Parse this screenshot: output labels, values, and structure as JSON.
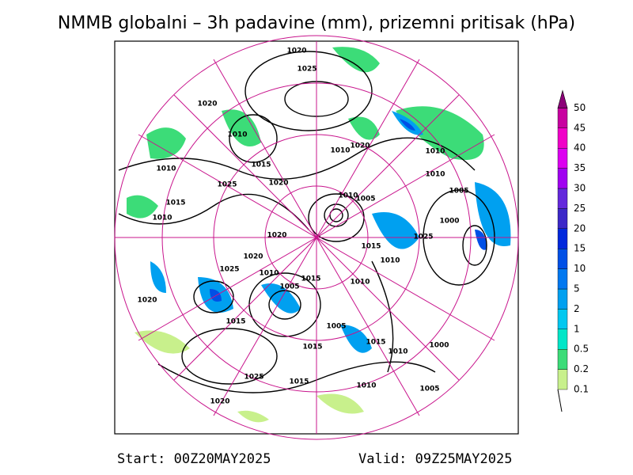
{
  "header": {
    "title": "NMMB globalni – 3h padavine (mm), prizemni pritisak (hPa)"
  },
  "footer": {
    "start": "Start: 00Z20MAY2025",
    "valid": "Valid: 09Z25MAY2025"
  },
  "colorbar": {
    "labels": [
      "0.1",
      "0.2",
      "0.5",
      "1",
      "2",
      "5",
      "10",
      "15",
      "20",
      "25",
      "30",
      "35",
      "40",
      "45",
      "50"
    ],
    "colors": [
      "#c8f08c",
      "#3cdc78",
      "#00e6c8",
      "#00c8f0",
      "#00a0f0",
      "#0078f0",
      "#0050e6",
      "#0028dc",
      "#3c28c8",
      "#6428dc",
      "#a000f0",
      "#dc00f0",
      "#f000c8",
      "#c800a0",
      "#8c0078"
    ]
  },
  "map": {
    "contour_labels": [
      "1020",
      "1025",
      "1020",
      "1010",
      "1015",
      "1020",
      "1010",
      "1020",
      "1010",
      "1010",
      "1025",
      "1005",
      "1010",
      "1015",
      "1010",
      "1010",
      "1005",
      "1000",
      "1020",
      "1025",
      "1020",
      "1015",
      "1010",
      "1025",
      "1010",
      "1015",
      "1010",
      "1005",
      "1020",
      "1015",
      "1005",
      "1015",
      "1015",
      "1010",
      "1000",
      "1025",
      "1015",
      "1010",
      "1005",
      "1020"
    ]
  }
}
